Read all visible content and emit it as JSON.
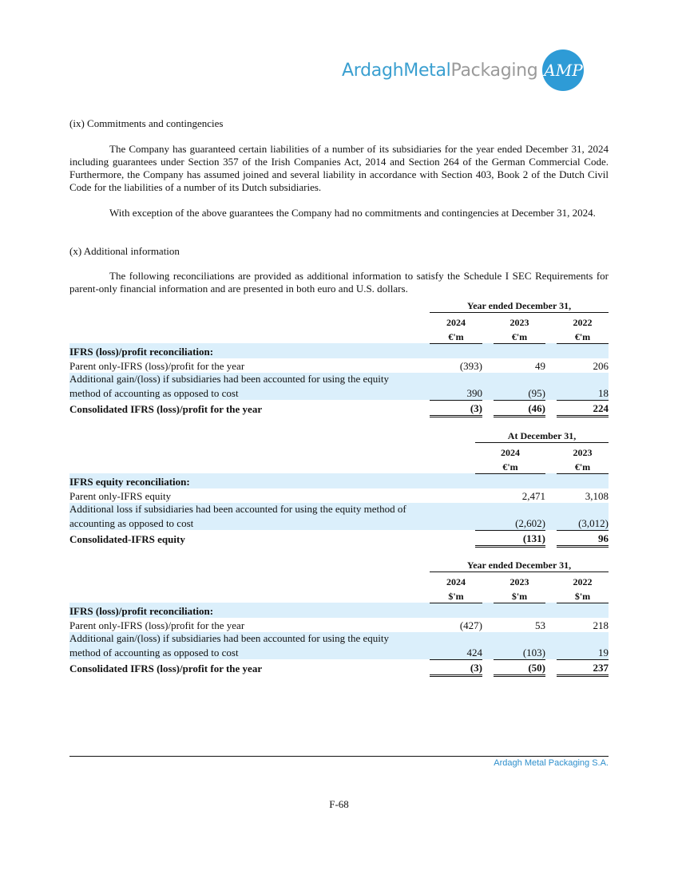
{
  "logo": {
    "word1": "ArdaghMetal",
    "word2": "Packaging",
    "mark": "AMP"
  },
  "sections": {
    "ix_title": "(ix) Commitments and contingencies",
    "ix_p1": "The Company has guaranteed certain liabilities of a number of its subsidiaries for the year ended December 31, 2024 including guarantees under Section 357 of the Irish Companies Act, 2014 and Section 264 of the German Commercial Code. Furthermore, the Company has assumed joined and several liability in accordance with Section 403, Book 2 of the Dutch Civil Code for the liabilities of a number of its Dutch subsidiaries.",
    "ix_p2": "With exception of the above guarantees the Company had no commitments and contingencies at December 31, 2024.",
    "x_title": "(x) Additional information",
    "x_p1": "The following reconciliations are provided as additional information to satisfy the Schedule I SEC Requirements for parent-only financial information and are presented in both euro and U.S. dollars."
  },
  "table1": {
    "period": "Year ended December 31,",
    "years": [
      "2024",
      "2023",
      "2022"
    ],
    "unit": "€'m",
    "heading": "IFRS (loss)/profit reconciliation:",
    "rows": [
      {
        "label": "Parent only-IFRS (loss)/profit for the year",
        "values": [
          "(393)",
          "49",
          "206"
        ]
      },
      {
        "label": "Additional gain/(loss) if subsidiaries had been accounted for using the equity",
        "label2": "method of accounting as opposed to cost",
        "values": [
          "390",
          "(95)",
          "18"
        ]
      }
    ],
    "total": {
      "label": "Consolidated IFRS (loss)/profit for the year",
      "values": [
        "(3)",
        "(46)",
        "224"
      ]
    }
  },
  "table2": {
    "period": "At December 31,",
    "years": [
      "2024",
      "2023"
    ],
    "unit": "€'m",
    "heading": "IFRS equity reconciliation:",
    "rows": [
      {
        "label": "Parent only-IFRS equity",
        "values": [
          "2,471",
          "3,108"
        ]
      },
      {
        "label": "Additional loss if subsidiaries had been accounted for using the equity method of",
        "label2": "accounting as opposed to cost",
        "values": [
          "(2,602)",
          "(3,012)"
        ]
      }
    ],
    "total": {
      "label": "Consolidated-IFRS equity",
      "values": [
        "(131)",
        "96"
      ]
    }
  },
  "table3": {
    "period": "Year ended December 31,",
    "years": [
      "2024",
      "2023",
      "2022"
    ],
    "unit": "$'m",
    "heading": "IFRS (loss)/profit reconciliation:",
    "rows": [
      {
        "label": "Parent only-IFRS (loss)/profit for the year",
        "values": [
          "(427)",
          "53",
          "218"
        ]
      },
      {
        "label": "Additional gain/(loss) if subsidiaries had been accounted for using the equity",
        "label2": "method of accounting as opposed to cost",
        "values": [
          "424",
          "(103)",
          "19"
        ]
      }
    ],
    "total": {
      "label": "Consolidated IFRS (loss)/profit for the year",
      "values": [
        "(3)",
        "(50)",
        "237"
      ]
    }
  },
  "footer": {
    "company": "Ardagh Metal Packaging S.A.",
    "page": "F-68"
  }
}
